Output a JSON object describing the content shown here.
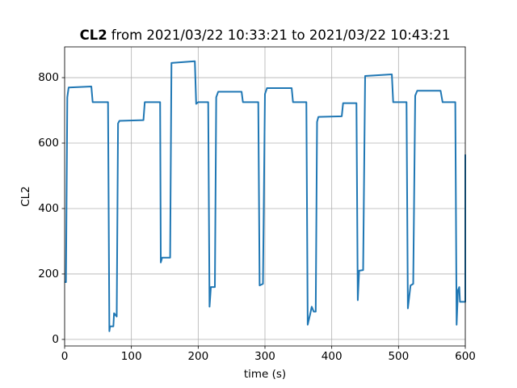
{
  "chart_data": {
    "type": "line",
    "title_bold": "CL2",
    "title": "from 2021/03/22 10:33:21 to 2021/03/22 10:43:21",
    "x_label": "time (s)",
    "y_label": "CL2",
    "color": "#1f77b4",
    "grid": true,
    "xlim": [
      0,
      600
    ],
    "xticks": [
      0,
      100,
      200,
      300,
      400,
      500,
      600
    ],
    "ylim": [
      -20,
      894
    ],
    "yticks": [
      0,
      200,
      400,
      600,
      800
    ],
    "x": [
      0,
      2,
      4,
      6,
      40,
      42,
      65,
      67,
      68,
      73,
      74,
      78,
      80,
      82,
      118,
      120,
      143,
      144,
      146,
      158,
      160,
      195,
      197,
      200,
      215,
      217,
      219,
      225,
      227,
      230,
      265,
      267,
      290,
      292,
      297,
      300,
      303,
      340,
      342,
      362,
      364,
      368,
      370,
      373,
      376,
      378,
      380,
      415,
      417,
      437,
      439,
      441,
      447,
      450,
      490,
      492,
      512,
      514,
      518,
      522,
      525,
      528,
      563,
      566,
      585,
      587,
      589,
      591,
      592,
      600,
      600
    ],
    "values": [
      175,
      175,
      740,
      770,
      773,
      725,
      725,
      25,
      40,
      40,
      80,
      70,
      660,
      668,
      670,
      725,
      725,
      235,
      250,
      250,
      845,
      850,
      720,
      725,
      725,
      100,
      160,
      160,
      740,
      757,
      757,
      725,
      725,
      165,
      170,
      750,
      768,
      768,
      725,
      725,
      45,
      80,
      100,
      85,
      85,
      665,
      680,
      682,
      722,
      722,
      120,
      210,
      212,
      805,
      810,
      725,
      725,
      95,
      165,
      170,
      745,
      760,
      760,
      725,
      725,
      45,
      150,
      160,
      115,
      115,
      565
    ]
  }
}
